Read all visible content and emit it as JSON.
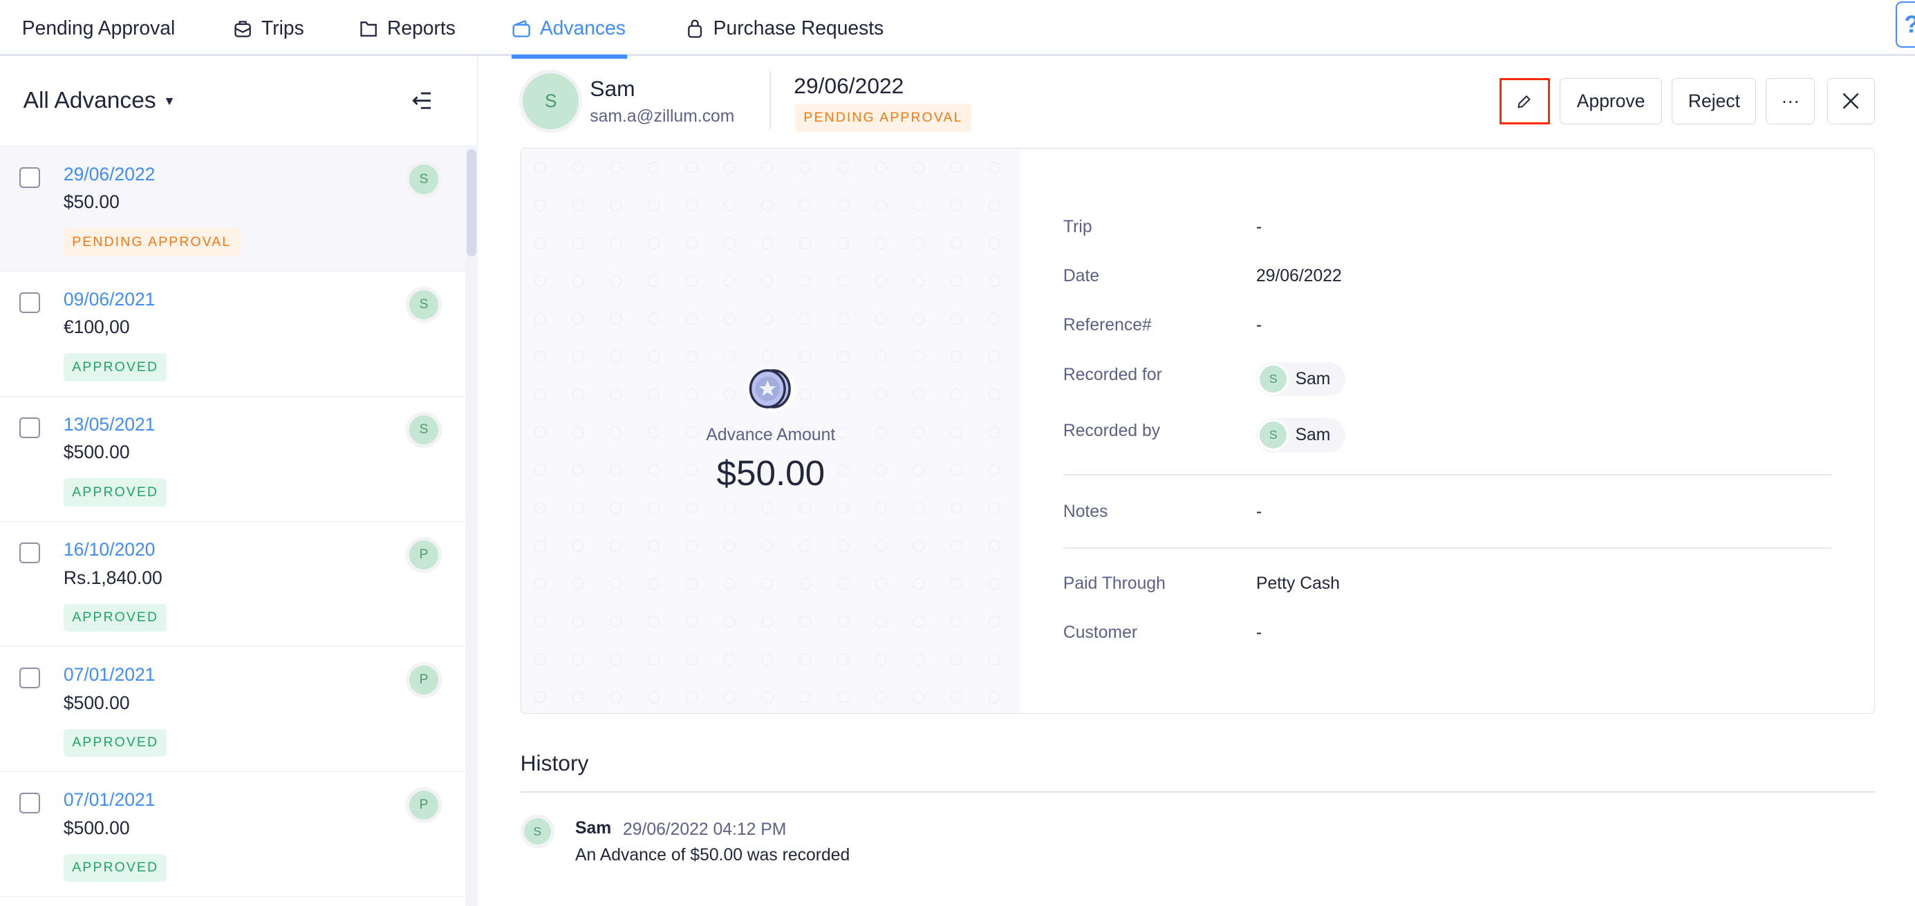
{
  "nav": {
    "tabs": [
      {
        "label": "Pending Approval",
        "icon": ""
      },
      {
        "label": "Trips",
        "icon": "suitcase-icon"
      },
      {
        "label": "Reports",
        "icon": "folder-icon"
      },
      {
        "label": "Advances",
        "icon": "wallet-icon",
        "active": true
      },
      {
        "label": "Purchase Requests",
        "icon": "bag-icon"
      }
    ],
    "help_label": "?"
  },
  "sidebar": {
    "title": "All Advances",
    "items": [
      {
        "date": "29/06/2022",
        "amount": "$50.00",
        "status": "PENDING APPROVAL",
        "avatar": "S",
        "selected": true
      },
      {
        "date": "09/06/2021",
        "amount": "€100,00",
        "status": "APPROVED",
        "avatar": "S"
      },
      {
        "date": "13/05/2021",
        "amount": "$500.00",
        "status": "APPROVED",
        "avatar": "S"
      },
      {
        "date": "16/10/2020",
        "amount": "Rs.1,840.00",
        "status": "APPROVED",
        "avatar": "P"
      },
      {
        "date": "07/01/2021",
        "amount": "$500.00",
        "status": "APPROVED",
        "avatar": "P"
      },
      {
        "date": "07/01/2021",
        "amount": "$500.00",
        "status": "APPROVED",
        "avatar": "P"
      }
    ]
  },
  "detail": {
    "user": {
      "initial": "S",
      "name": "Sam",
      "email": "sam.a@zillum.com"
    },
    "date": "29/06/2022",
    "status": "PENDING APPROVAL",
    "actions": {
      "approve": "Approve",
      "reject": "Reject",
      "more": "···"
    },
    "amount_label": "Advance Amount",
    "amount": "$50.00",
    "fields": {
      "trip": {
        "label": "Trip",
        "value": "-"
      },
      "date": {
        "label": "Date",
        "value": "29/06/2022"
      },
      "reference": {
        "label": "Reference#",
        "value": "-"
      },
      "recorded_for": {
        "label": "Recorded for",
        "initial": "S",
        "value": "Sam"
      },
      "recorded_by": {
        "label": "Recorded by",
        "initial": "S",
        "value": "Sam"
      },
      "notes": {
        "label": "Notes",
        "value": "-"
      },
      "paid_through": {
        "label": "Paid Through",
        "value": "Petty Cash"
      },
      "customer": {
        "label": "Customer",
        "value": "-"
      }
    }
  },
  "history": {
    "title": "History",
    "entries": [
      {
        "initial": "S",
        "name": "Sam",
        "time": "29/06/2022 04:12 PM",
        "message": "An Advance of $50.00 was recorded"
      }
    ]
  },
  "colors": {
    "accent": "#408dfb",
    "pending": "#f47a14",
    "approved": "#1fa564",
    "highlight": "#ff2a00"
  }
}
